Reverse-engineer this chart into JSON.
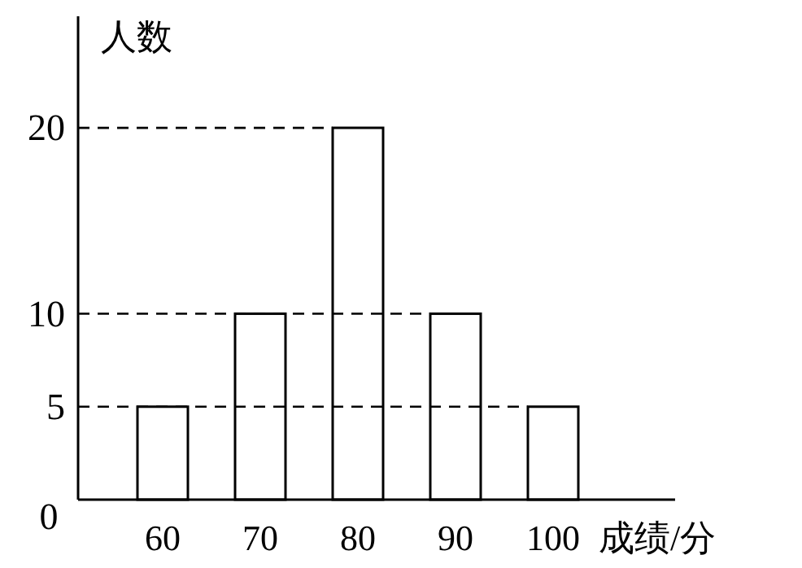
{
  "chart_data": {
    "type": "bar",
    "xlabel": "成绩/分",
    "ylabel": "人数",
    "categories": [
      "60",
      "70",
      "80",
      "90",
      "100"
    ],
    "values": [
      5,
      10,
      20,
      10,
      5
    ],
    "color": "#ffffff",
    "ylim": [
      0,
      26
    ],
    "yticks": [
      0,
      5,
      10,
      20
    ],
    "grid": false,
    "ref_lines": [
      {
        "axis": "y",
        "value": 5,
        "line_style": "dashed"
      },
      {
        "axis": "y",
        "value": 10,
        "line_style": "dashed"
      },
      {
        "axis": "y",
        "value": 20,
        "line_style": "dashed"
      }
    ]
  }
}
